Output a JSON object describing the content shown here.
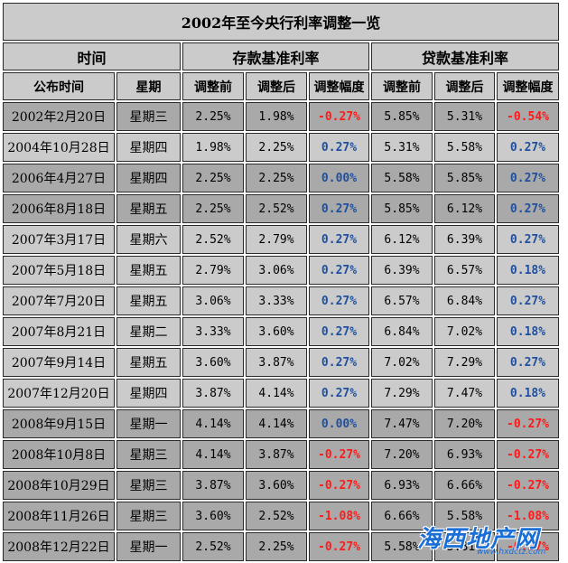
{
  "title": "2002年至今央行利率调整一览",
  "group_headers": {
    "time": "时间",
    "deposit": "存款基准利率",
    "loan": "贷款基准利率"
  },
  "columns": [
    "公布时间",
    "星期",
    "调整前",
    "调整后",
    "调整幅度",
    "调整前",
    "调整后",
    "调整幅度"
  ],
  "rows": [
    {
      "date": "2002年2月20日",
      "weekday": "星期三",
      "dep_before": "2.25%",
      "dep_after": "1.98%",
      "dep_change": "-0.27%",
      "loan_before": "5.85%",
      "loan_after": "5.31%",
      "loan_change": "-0.54%"
    },
    {
      "date": "2004年10月28日",
      "weekday": "星期四",
      "dep_before": "1.98%",
      "dep_after": "2.25%",
      "dep_change": "0.27%",
      "loan_before": "5.31%",
      "loan_after": "5.58%",
      "loan_change": "0.27%"
    },
    {
      "date": "2006年4月27日",
      "weekday": "星期四",
      "dep_before": "2.25%",
      "dep_after": "2.25%",
      "dep_change": "0.00%",
      "loan_before": "5.58%",
      "loan_after": "5.85%",
      "loan_change": "0.27%"
    },
    {
      "date": "2006年8月18日",
      "weekday": "星期五",
      "dep_before": "2.25%",
      "dep_after": "2.52%",
      "dep_change": "0.27%",
      "loan_before": "5.85%",
      "loan_after": "6.12%",
      "loan_change": "0.27%"
    },
    {
      "date": "2007年3月17日",
      "weekday": "星期六",
      "dep_before": "2.52%",
      "dep_after": "2.79%",
      "dep_change": "0.27%",
      "loan_before": "6.12%",
      "loan_after": "6.39%",
      "loan_change": "0.27%"
    },
    {
      "date": "2007年5月18日",
      "weekday": "星期五",
      "dep_before": "2.79%",
      "dep_after": "3.06%",
      "dep_change": "0.27%",
      "loan_before": "6.39%",
      "loan_after": "6.57%",
      "loan_change": "0.18%"
    },
    {
      "date": "2007年7月20日",
      "weekday": "星期五",
      "dep_before": "3.06%",
      "dep_after": "3.33%",
      "dep_change": "0.27%",
      "loan_before": "6.57%",
      "loan_after": "6.84%",
      "loan_change": "0.27%"
    },
    {
      "date": "2007年8月21日",
      "weekday": "星期二",
      "dep_before": "3.33%",
      "dep_after": "3.60%",
      "dep_change": "0.27%",
      "loan_before": "6.84%",
      "loan_after": "7.02%",
      "loan_change": "0.18%"
    },
    {
      "date": "2007年9月14日",
      "weekday": "星期五",
      "dep_before": "3.60%",
      "dep_after": "3.87%",
      "dep_change": "0.27%",
      "loan_before": "7.02%",
      "loan_after": "7.29%",
      "loan_change": "0.27%"
    },
    {
      "date": "2007年12月20日",
      "weekday": "星期四",
      "dep_before": "3.87%",
      "dep_after": "4.14%",
      "dep_change": "0.27%",
      "loan_before": "7.29%",
      "loan_after": "7.47%",
      "loan_change": "0.18%"
    },
    {
      "date": "2008年9月15日",
      "weekday": "星期一",
      "dep_before": "4.14%",
      "dep_after": "4.14%",
      "dep_change": "0.00%",
      "loan_before": "7.47%",
      "loan_after": "7.20%",
      "loan_change": "-0.27%"
    },
    {
      "date": "2008年10月8日",
      "weekday": "星期三",
      "dep_before": "4.14%",
      "dep_after": "3.87%",
      "dep_change": "-0.27%",
      "loan_before": "7.20%",
      "loan_after": "6.93%",
      "loan_change": "-0.27%"
    },
    {
      "date": "2008年10月29日",
      "weekday": "星期三",
      "dep_before": "3.87%",
      "dep_after": "3.60%",
      "dep_change": "-0.27%",
      "loan_before": "6.93%",
      "loan_after": "6.66%",
      "loan_change": "-0.27%"
    },
    {
      "date": "2008年11月26日",
      "weekday": "星期三",
      "dep_before": "3.60%",
      "dep_after": "2.52%",
      "dep_change": "-1.08%",
      "loan_before": "6.66%",
      "loan_after": "5.58%",
      "loan_change": "-1.08%"
    },
    {
      "date": "2008年12月22日",
      "weekday": "星期一",
      "dep_before": "2.52%",
      "dep_after": "2.25%",
      "dep_change": "-0.27%",
      "loan_before": "5.58%",
      "loan_after": "5.31%",
      "loan_change": "-0.27%"
    }
  ],
  "row_shading": [
    "dark",
    "light",
    "dark",
    "dark",
    "light",
    "light",
    "light",
    "light",
    "light",
    "light",
    "dark",
    "dark",
    "dark",
    "dark",
    "dark"
  ],
  "colors": {
    "increase": "#1f4f9e",
    "decrease": "#ff1a1a",
    "header_bg": "#cbcbcb",
    "dark_row_bg": "#a9a9a9",
    "light_row_bg": "#cbcbcb"
  },
  "watermark": {
    "text": "海西地产网",
    "url": "www.hxdctz.com"
  }
}
